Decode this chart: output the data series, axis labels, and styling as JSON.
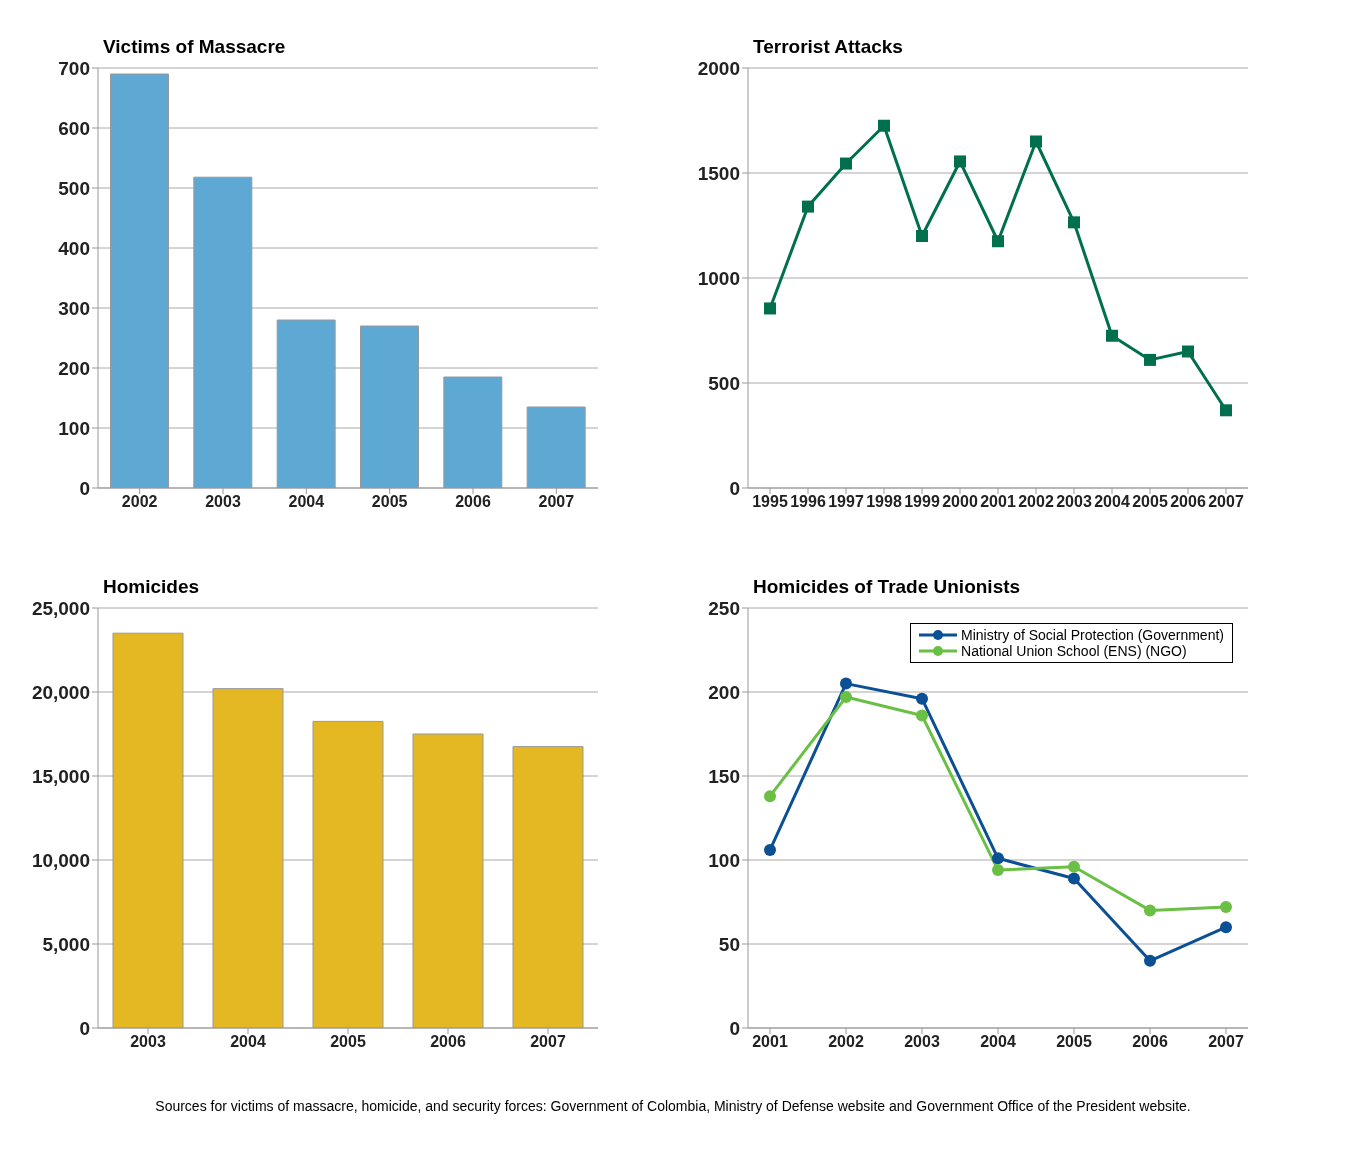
{
  "chart_data": [
    {
      "type": "bar",
      "title": "Victims of Massacre",
      "categories": [
        "2002",
        "2003",
        "2004",
        "2005",
        "2006",
        "2007"
      ],
      "values": [
        690,
        518,
        280,
        270,
        185,
        135
      ],
      "color": "#5ea9d4",
      "ylim": [
        0,
        700
      ],
      "yticks": [
        0,
        100,
        200,
        300,
        400,
        500,
        600,
        700
      ],
      "grid": "y"
    },
    {
      "type": "line",
      "title": "Terrorist Attacks",
      "categories": [
        "1995",
        "1996",
        "1997",
        "1998",
        "1999",
        "2000",
        "2001",
        "2002",
        "2003",
        "2004",
        "2005",
        "2006",
        "2007"
      ],
      "values": [
        855,
        1340,
        1545,
        1725,
        1200,
        1555,
        1175,
        1650,
        1265,
        725,
        610,
        650,
        370
      ],
      "color": "#006f4e",
      "marker": "square",
      "ylim": [
        0,
        2000
      ],
      "yticks": [
        0,
        500,
        1000,
        1500,
        2000
      ],
      "grid": "y"
    },
    {
      "type": "bar",
      "title": "Homicides",
      "categories": [
        "2003",
        "2004",
        "2005",
        "2006",
        "2007"
      ],
      "values": [
        23500,
        20200,
        18250,
        17500,
        16750
      ],
      "color": "#e3b822",
      "ylim": [
        0,
        25000
      ],
      "yticks": [
        0,
        {
          "value": 5000,
          "label": "5,000"
        },
        {
          "value": 10000,
          "label": "10,000"
        },
        {
          "value": 15000,
          "label": "15,000"
        },
        {
          "value": 20000,
          "label": "20,000"
        },
        {
          "value": 25000,
          "label": "25,000"
        }
      ],
      "grid": "y"
    },
    {
      "type": "line",
      "title": "Homicides of Trade Unionists",
      "categories": [
        "2001",
        "2002",
        "2003",
        "2004",
        "2005",
        "2006",
        "2007"
      ],
      "series": [
        {
          "name": "Ministry of Social Protection (Government)",
          "color": "#0b4f94",
          "values": [
            106,
            205,
            196,
            101,
            89,
            40,
            60
          ]
        },
        {
          "name": "National Union School (ENS) (NGO)",
          "color": "#6abf45",
          "values": [
            138,
            197,
            186,
            94,
            96,
            70,
            72
          ]
        }
      ],
      "marker": "circle",
      "ylim": [
        0,
        250
      ],
      "yticks": [
        0,
        50,
        100,
        150,
        200,
        250
      ],
      "grid": "y",
      "legend": "top right",
      "annotations": [
        "Sources for victims of massacre, homicide, and security forces: Government of Colombia, Ministry of Defense website  and Government Office of the President website."
      ]
    }
  ]
}
